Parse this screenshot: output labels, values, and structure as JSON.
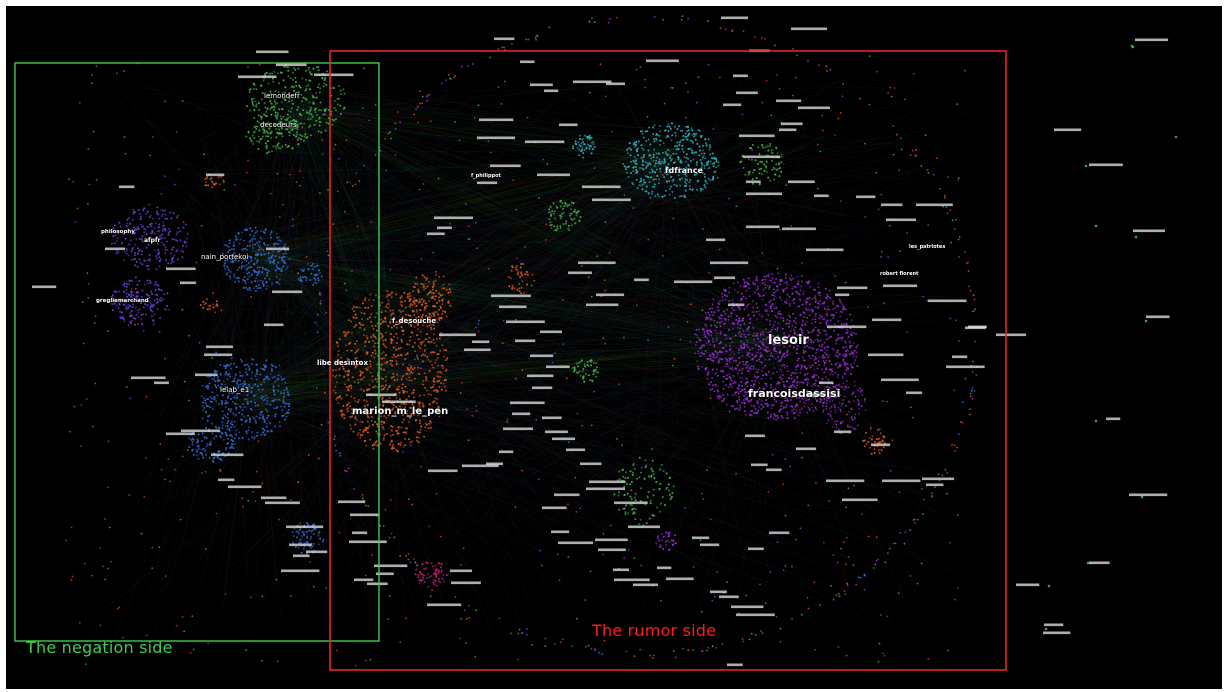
{
  "colors": {
    "background": "#000000",
    "negation_box": "#3dcc4c",
    "rumor_box": "#e8222a",
    "cluster_purple": "#9a2bd8",
    "cluster_cyan": "#2ab3c0",
    "cluster_orange": "#e0571c",
    "cluster_green": "#3fb648",
    "cluster_blue": "#2f6fd8",
    "cluster_violet": "#6a3fd6",
    "cluster_magenta": "#c8207a"
  },
  "regions": {
    "negation": {
      "title": "The negation side"
    },
    "rumor": {
      "title": "The rumor side"
    }
  },
  "labels": {
    "lesoir": "lesoir",
    "francoisdassisi": "francoisdassisi",
    "marion_m_le_pen": "marion_m_le_pen",
    "libe_desintox": "libe desintox",
    "f_desouche": "f_desouche",
    "fdfrance": "fdfrance",
    "nain_portekoi": "nain_portekoi",
    "lelab_e1": "lelab_e1",
    "lemondefr": "lemondefr",
    "decodeurs": "decodeurs",
    "afpfr": "afpfr",
    "philosophy": "philosophy",
    "gregliemarchand": "gregliemarchand",
    "les_patriotes": "les_patriotes",
    "robert_florent": "robert florent",
    "f_philippot": "f_philippot"
  }
}
